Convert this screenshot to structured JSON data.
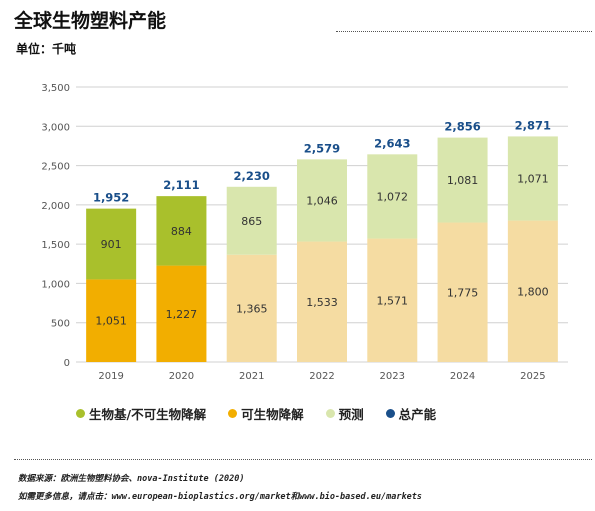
{
  "title": "全球生物塑料产能",
  "unit_label": "单位：千吨",
  "colors": {
    "bio_based": "#a9c02c",
    "biodegradable": "#f2ae00",
    "bio_based_forecast": "#d9e6ad",
    "biodegradable_forecast": "#f5dca2",
    "total": "#1a4f8a",
    "axis_text": "#555555",
    "grid": "#d0d0d0"
  },
  "chart_data": {
    "type": "bar",
    "stacked": true,
    "categories": [
      "2019",
      "2020",
      "2021",
      "2022",
      "2023",
      "2024",
      "2025"
    ],
    "series": [
      {
        "key": "biodegradable",
        "name": "可生物降解",
        "values": [
          1051,
          1227,
          1365,
          1533,
          1571,
          1775,
          1800
        ],
        "labels": [
          "1,051",
          "1,227",
          "1,365",
          "1,533",
          "1,571",
          "1,775",
          "1,800"
        ]
      },
      {
        "key": "bio_based",
        "name": "生物基/不可生物降解",
        "values": [
          901,
          884,
          865,
          1046,
          1072,
          1081,
          1071
        ],
        "labels": [
          "901",
          "884",
          "865",
          "1,046",
          "1,072",
          "1,081",
          "1,071"
        ]
      }
    ],
    "forecast_from_index": 2,
    "forecast_name": "预测",
    "totals": [
      1952,
      2111,
      2230,
      2579,
      2643,
      2856,
      2871
    ],
    "total_labels": [
      "1,952",
      "2,111",
      "2,230",
      "2,579",
      "2,643",
      "2,856",
      "2,871"
    ],
    "total_name": "总产能",
    "ylim": [
      0,
      3500
    ],
    "yticks": [
      0,
      500,
      1000,
      1500,
      2000,
      2500,
      3000,
      3500
    ],
    "ytick_labels": [
      "0",
      "500",
      "1,000",
      "1,500",
      "2,000",
      "2,500",
      "3,000",
      "3,500"
    ],
    "grid": true,
    "legend_position": "bottom"
  },
  "source": {
    "line1": "数据来源：欧洲生物塑料协会、nova-Institute (2020)",
    "line2": "如需更多信息，请点击：www.european-bioplastics.org/market和www.bio-based.eu/markets"
  }
}
